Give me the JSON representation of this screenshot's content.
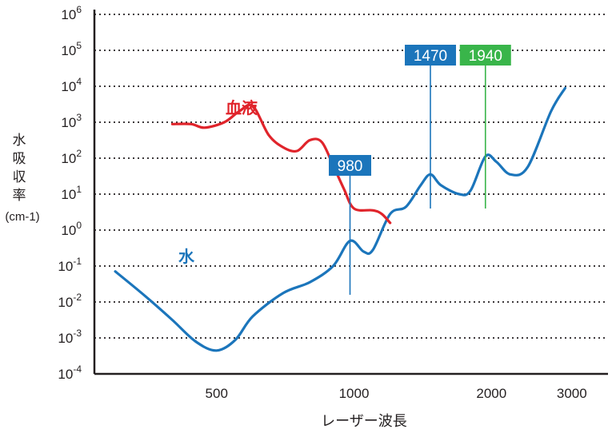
{
  "chart_data": {
    "type": "line",
    "title": "",
    "xlabel": "レーザー波長",
    "ylabel": [
      "水",
      "吸",
      "収",
      "率"
    ],
    "ylabel_unit": "(cm-1)",
    "x_scale": "log",
    "y_scale": "log",
    "xlim": [
      270,
      3600
    ],
    "ylim_exponents": [
      -4,
      6
    ],
    "x_ticks": [
      {
        "value": 500,
        "label": "500"
      },
      {
        "value": 1000,
        "label": "1000"
      },
      {
        "value": 2000,
        "label": "2000"
      },
      {
        "value": 3000,
        "label": "3000"
      }
    ],
    "y_ticks": [
      {
        "base": "10",
        "exp": "-4"
      },
      {
        "base": "10",
        "exp": "-3"
      },
      {
        "base": "10",
        "exp": "-2"
      },
      {
        "base": "10",
        "exp": "-1"
      },
      {
        "base": "10",
        "exp": "0"
      },
      {
        "base": "10",
        "exp": "1"
      },
      {
        "base": "10",
        "exp": "2"
      },
      {
        "base": "10",
        "exp": "3"
      },
      {
        "base": "10",
        "exp": "4"
      },
      {
        "base": "10",
        "exp": "5"
      },
      {
        "base": "10",
        "exp": "6"
      }
    ],
    "grid": "horizontal dotted",
    "series": [
      {
        "name": "水",
        "color": "#1b75bb",
        "points": [
          [
            300,
            -1.15
          ],
          [
            350,
            -1.85
          ],
          [
            400,
            -2.5
          ],
          [
            450,
            -3.1
          ],
          [
            500,
            -3.35
          ],
          [
            550,
            -3.05
          ],
          [
            600,
            -2.4
          ],
          [
            700,
            -1.75
          ],
          [
            800,
            -1.45
          ],
          [
            900,
            -1.0
          ],
          [
            980,
            -0.3
          ],
          [
            1050,
            -0.6
          ],
          [
            1100,
            -0.55
          ],
          [
            1200,
            0.45
          ],
          [
            1300,
            0.65
          ],
          [
            1400,
            1.25
          ],
          [
            1470,
            1.55
          ],
          [
            1550,
            1.25
          ],
          [
            1700,
            1.0
          ],
          [
            1800,
            1.1
          ],
          [
            1940,
            2.05
          ],
          [
            2050,
            1.9
          ],
          [
            2200,
            1.55
          ],
          [
            2400,
            1.75
          ],
          [
            2700,
            3.3
          ],
          [
            2900,
            3.95
          ]
        ]
      },
      {
        "name": "血液",
        "color": "#e0242b",
        "points": [
          [
            400,
            2.95
          ],
          [
            440,
            2.95
          ],
          [
            470,
            2.85
          ],
          [
            520,
            3.0
          ],
          [
            560,
            3.3
          ],
          [
            600,
            3.45
          ],
          [
            650,
            2.65
          ],
          [
            700,
            2.3
          ],
          [
            750,
            2.2
          ],
          [
            800,
            2.5
          ],
          [
            850,
            2.45
          ],
          [
            900,
            1.8
          ],
          [
            950,
            1.15
          ],
          [
            1000,
            0.6
          ],
          [
            1100,
            0.55
          ],
          [
            1150,
            0.45
          ],
          [
            1200,
            0.2
          ]
        ]
      }
    ],
    "annotations": [
      {
        "label": "980",
        "x": 980,
        "color": "#1b75bb",
        "line_from_exp": -1.8
      },
      {
        "label": "1470",
        "x": 1470,
        "color": "#1b75bb",
        "line_from_exp": 0.6
      },
      {
        "label": "1940",
        "x": 1940,
        "color": "#39b54a",
        "line_from_exp": 0.6
      }
    ]
  }
}
